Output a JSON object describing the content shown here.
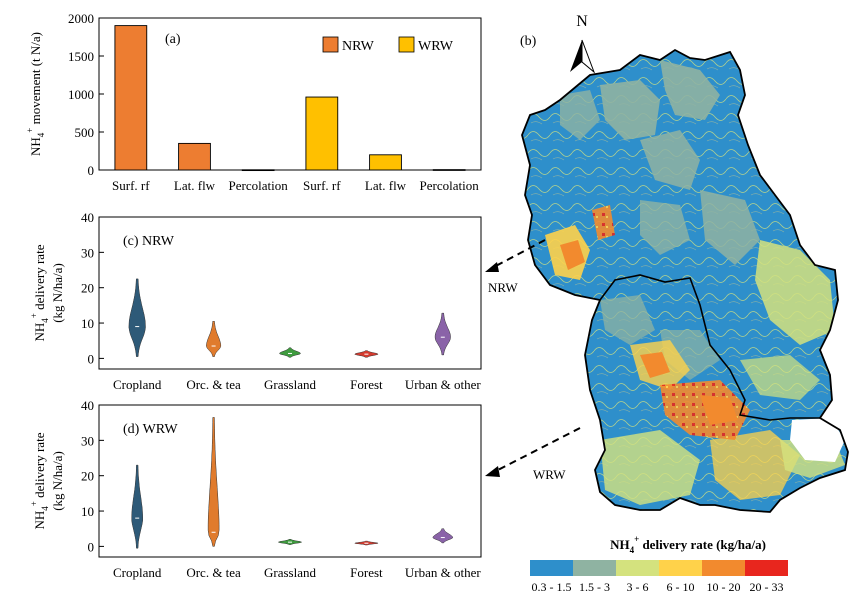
{
  "chart_data": [
    {
      "type": "bar",
      "panel_label": "(a)",
      "ylabel_main": "NH",
      "ylabel_sub": "4",
      "ylabel_sup": "+",
      "ylabel_rest": " movement (t N/a)",
      "ylim": [
        0,
        2000
      ],
      "yticks": [
        "0",
        "500",
        "1000",
        "1500",
        "2000"
      ],
      "ytick_values": [
        0,
        500,
        1000,
        1500,
        2000
      ],
      "grid": false,
      "legend_position": "top-right",
      "series": [
        {
          "name": "NRW",
          "color": "#ED7D31",
          "categories": [
            "Surf. rf",
            "Lat. flw",
            "Percolation"
          ],
          "values": [
            1900,
            350,
            3
          ]
        },
        {
          "name": "WRW",
          "color": "#FFC000",
          "categories": [
            "Surf. rf",
            "Lat. flw",
            "Percolation"
          ],
          "values": [
            960,
            200,
            5
          ]
        }
      ]
    },
    {
      "type": "violin",
      "panel_label": "(c) NRW",
      "ylabel_line1_main": "NH",
      "ylabel_line1_sub": "4",
      "ylabel_line1_sup": "+",
      "ylabel_line1_rest": " delivery rate",
      "ylabel_line2": "(kg N/ha/a)",
      "ylim": [
        -3,
        40
      ],
      "yticks": [
        "0",
        "10",
        "20",
        "30",
        "40"
      ],
      "ytick_values": [
        0,
        10,
        20,
        30,
        40
      ],
      "categories": [
        "Cropland",
        "Orc. & tea",
        "Grassland",
        "Forest",
        "Urban & other"
      ],
      "colors": [
        "#2E5A78",
        "#E07B2D",
        "#3E9B3E",
        "#D43A2E",
        "#8A63A8"
      ],
      "violins": [
        {
          "min": 0.5,
          "max": 22.5,
          "center": 9,
          "width": 0.7
        },
        {
          "min": 0.5,
          "max": 10.5,
          "center": 3.5,
          "width": 0.6
        },
        {
          "min": 0.3,
          "max": 3.0,
          "center": 1.4,
          "width": 0.9
        },
        {
          "min": 0.3,
          "max": 2.2,
          "center": 1.2,
          "width": 1.0
        },
        {
          "min": 1.0,
          "max": 12.8,
          "center": 6.0,
          "width": 0.65
        }
      ]
    },
    {
      "type": "violin",
      "panel_label": "(d) WRW",
      "ylabel_line1_main": "NH",
      "ylabel_line1_sub": "4",
      "ylabel_line1_sup": "+",
      "ylabel_line1_rest": " delivery rate",
      "ylabel_line2": "(kg N/ha/a)",
      "ylim": [
        -3,
        40
      ],
      "yticks": [
        "0",
        "10",
        "20",
        "30",
        "40"
      ],
      "ytick_values": [
        0,
        10,
        20,
        30,
        40
      ],
      "categories": [
        "Cropland",
        "Orc. & tea",
        "Grassland",
        "Forest",
        "Urban & other"
      ],
      "colors": [
        "#2E5A78",
        "#E07B2D",
        "#3E9B3E",
        "#D43A2E",
        "#8A63A8"
      ],
      "violins": [
        {
          "min": -0.5,
          "max": 23,
          "center": 8,
          "width": 0.45
        },
        {
          "min": 0.0,
          "max": 36.5,
          "center": 4,
          "width": 0.45
        },
        {
          "min": 0.5,
          "max": 2.0,
          "center": 1.2,
          "width": 1.0
        },
        {
          "min": 0.4,
          "max": 1.5,
          "center": 0.9,
          "width": 1.0
        },
        {
          "min": 1.0,
          "max": 5.0,
          "center": 2.5,
          "width": 0.85
        }
      ]
    },
    {
      "type": "map",
      "panel_label": "(b)",
      "north_label": "N",
      "region_labels": [
        "NRW",
        "WRW"
      ],
      "legend_title_main": "NH",
      "legend_title_sub": "4",
      "legend_title_sup": "+",
      "legend_title_rest": " delivery rate (kg/ha/a)",
      "legend_position": "bottom",
      "classes": [
        {
          "label": "0.3 - 1.5",
          "color": "#2E8FCB"
        },
        {
          "label": "1.5 - 3",
          "color": "#8FB3A2"
        },
        {
          "label": "3 - 6",
          "color": "#D4E27E"
        },
        {
          "label": "6 - 10",
          "color": "#FFD24A"
        },
        {
          "label": "10 - 20",
          "color": "#F28A2E"
        },
        {
          "label": "20 - 33",
          "color": "#E8261E"
        }
      ]
    }
  ]
}
